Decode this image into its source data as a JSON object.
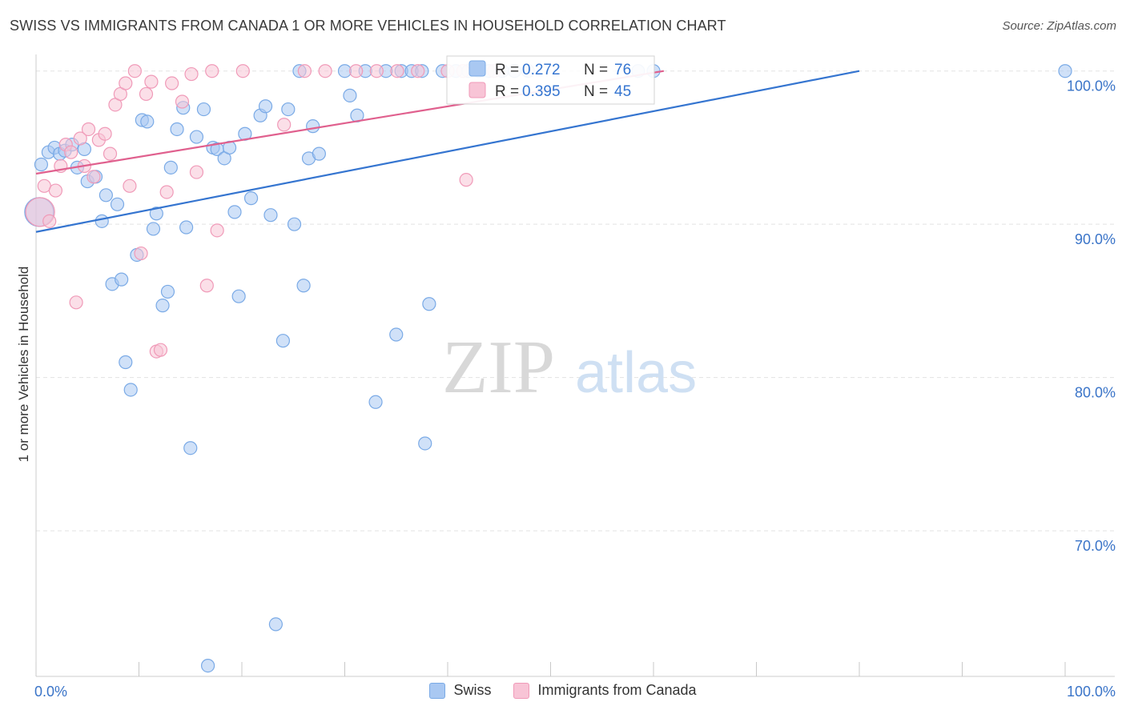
{
  "title": "SWISS VS IMMIGRANTS FROM CANADA 1 OR MORE VEHICLES IN HOUSEHOLD CORRELATION CHART",
  "source": "Source: ZipAtlas.com",
  "watermark": {
    "zip": "ZIP",
    "atlas": "atlas"
  },
  "chart_data": {
    "type": "scatter",
    "title": "SWISS VS IMMIGRANTS FROM CANADA 1 OR MORE VEHICLES IN HOUSEHOLD CORRELATION CHART",
    "xlabel": "",
    "ylabel": "1 or more Vehicles in Household",
    "xlim": [
      0,
      100
    ],
    "ylim": [
      60.5,
      101.5
    ],
    "x_tick_labels": [
      {
        "value": 0,
        "label": "0.0%"
      },
      {
        "value": 100,
        "label": "100.0%"
      }
    ],
    "y_tick_labels": [
      {
        "value": 100,
        "label": "100.0%"
      },
      {
        "value": 90,
        "label": "90.0%"
      },
      {
        "value": 80,
        "label": "80.0%"
      },
      {
        "value": 70,
        "label": "70.0%"
      }
    ],
    "legend_position": "top-center",
    "series": [
      {
        "name": "Swiss",
        "color": "#7aaae6",
        "fill": "#a9c8f2",
        "line_color": "#3575d0",
        "R": "0.272",
        "N": "76",
        "trend": {
          "x": [
            0,
            80
          ],
          "y": [
            89.5,
            100.0
          ]
        },
        "points": [
          [
            0.3,
            90.8
          ],
          [
            0.5,
            93.9
          ],
          [
            1.2,
            94.7
          ],
          [
            1.8,
            95.0
          ],
          [
            2.3,
            94.6
          ],
          [
            2.8,
            94.8
          ],
          [
            3.5,
            95.2
          ],
          [
            4.0,
            93.7
          ],
          [
            4.7,
            94.9
          ],
          [
            5.0,
            92.8
          ],
          [
            5.8,
            93.1
          ],
          [
            6.4,
            90.2
          ],
          [
            6.8,
            91.9
          ],
          [
            7.4,
            86.1
          ],
          [
            7.9,
            91.3
          ],
          [
            8.3,
            86.4
          ],
          [
            8.7,
            81.0
          ],
          [
            9.2,
            79.2
          ],
          [
            9.8,
            88.0
          ],
          [
            10.3,
            96.8
          ],
          [
            10.8,
            96.7
          ],
          [
            11.4,
            89.7
          ],
          [
            11.7,
            90.7
          ],
          [
            12.3,
            84.7
          ],
          [
            12.8,
            85.6
          ],
          [
            13.1,
            93.7
          ],
          [
            13.7,
            96.2
          ],
          [
            14.3,
            97.6
          ],
          [
            14.6,
            89.8
          ],
          [
            15.0,
            75.4
          ],
          [
            15.6,
            95.7
          ],
          [
            16.3,
            97.5
          ],
          [
            16.7,
            61.2
          ],
          [
            17.2,
            95.0
          ],
          [
            17.6,
            94.9
          ],
          [
            18.3,
            94.3
          ],
          [
            18.8,
            95.0
          ],
          [
            19.3,
            90.8
          ],
          [
            19.7,
            85.3
          ],
          [
            20.3,
            95.9
          ],
          [
            20.9,
            91.7
          ],
          [
            21.8,
            97.1
          ],
          [
            22.3,
            97.7
          ],
          [
            22.8,
            90.6
          ],
          [
            23.3,
            63.9
          ],
          [
            24.0,
            82.4
          ],
          [
            24.5,
            97.5
          ],
          [
            25.1,
            90.0
          ],
          [
            25.6,
            100.0
          ],
          [
            26.0,
            86.0
          ],
          [
            26.5,
            94.3
          ],
          [
            26.9,
            96.4
          ],
          [
            27.5,
            94.6
          ],
          [
            30.0,
            100.0
          ],
          [
            30.5,
            98.4
          ],
          [
            31.2,
            97.1
          ],
          [
            32.0,
            100.0
          ],
          [
            33.0,
            78.4
          ],
          [
            34.0,
            100.0
          ],
          [
            35.0,
            82.8
          ],
          [
            35.5,
            100.0
          ],
          [
            36.5,
            100.0
          ],
          [
            37.5,
            100.0
          ],
          [
            37.8,
            75.7
          ],
          [
            38.2,
            84.8
          ],
          [
            39.5,
            100.0
          ],
          [
            40.8,
            100.0
          ],
          [
            42.0,
            100.0
          ],
          [
            43.0,
            100.0
          ],
          [
            44.0,
            100.0
          ],
          [
            45.3,
            100.0
          ],
          [
            46.5,
            100.0
          ],
          [
            47.8,
            100.0
          ],
          [
            58.5,
            100.0
          ],
          [
            60.0,
            100.0
          ],
          [
            100.0,
            100.0
          ]
        ]
      },
      {
        "name": "Immigrants from Canada",
        "color": "#f09ab8",
        "fill": "#f8c4d6",
        "line_color": "#e0608e",
        "R": "0.395",
        "N": "45",
        "trend": {
          "x": [
            0,
            61
          ],
          "y": [
            93.3,
            100.0
          ]
        },
        "points": [
          [
            0.4,
            90.8
          ],
          [
            0.8,
            92.5
          ],
          [
            1.3,
            90.2
          ],
          [
            1.9,
            92.2
          ],
          [
            2.4,
            93.8
          ],
          [
            2.9,
            95.2
          ],
          [
            3.4,
            94.7
          ],
          [
            3.9,
            84.9
          ],
          [
            4.3,
            95.6
          ],
          [
            4.7,
            93.8
          ],
          [
            5.1,
            96.2
          ],
          [
            5.6,
            93.1
          ],
          [
            6.1,
            95.5
          ],
          [
            6.7,
            95.9
          ],
          [
            7.2,
            94.6
          ],
          [
            7.7,
            97.8
          ],
          [
            8.2,
            98.5
          ],
          [
            8.7,
            99.2
          ],
          [
            9.1,
            92.5
          ],
          [
            9.6,
            100.0
          ],
          [
            10.2,
            88.1
          ],
          [
            10.7,
            98.5
          ],
          [
            11.2,
            99.3
          ],
          [
            11.7,
            81.7
          ],
          [
            12.1,
            81.8
          ],
          [
            12.7,
            92.1
          ],
          [
            13.2,
            99.2
          ],
          [
            14.2,
            98.0
          ],
          [
            15.1,
            99.8
          ],
          [
            15.6,
            93.4
          ],
          [
            16.6,
            86.0
          ],
          [
            17.1,
            100.0
          ],
          [
            17.6,
            89.6
          ],
          [
            20.1,
            100.0
          ],
          [
            24.1,
            96.5
          ],
          [
            26.1,
            100.0
          ],
          [
            28.1,
            100.0
          ],
          [
            31.1,
            100.0
          ],
          [
            33.1,
            100.0
          ],
          [
            35.1,
            100.0
          ],
          [
            37.1,
            100.0
          ],
          [
            40.0,
            100.0
          ],
          [
            41.5,
            100.0
          ],
          [
            41.8,
            92.9
          ],
          [
            44.5,
            100.0
          ]
        ]
      }
    ]
  }
}
